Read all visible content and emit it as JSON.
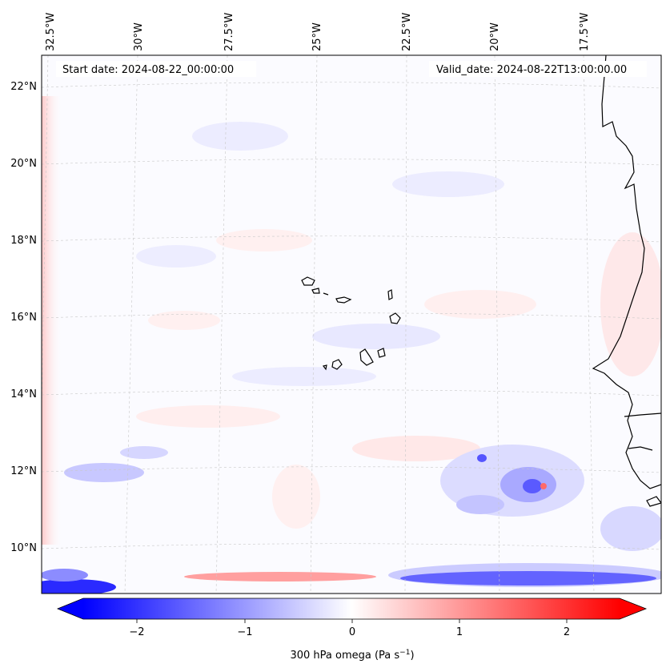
{
  "map": {
    "start_label": "Start date: 2024-08-22_00:00:00",
    "valid_label": "Valid_date: 2024-08-22T13:00:00.00",
    "lon_labels": [
      "32.5°W",
      "30°W",
      "27.5°W",
      "25°W",
      "22.5°W",
      "20°W",
      "17.5°W"
    ],
    "lat_labels": [
      "22°N",
      "20°N",
      "18°N",
      "16°N",
      "14°N",
      "12°N",
      "10°N"
    ],
    "field": "300 hPa omega",
    "colormap": "bwr",
    "coastline_color": "#000000"
  },
  "colorbar": {
    "label_main": "300 hPa omega (Pa s",
    "label_exp": "−1",
    "label_close": ")",
    "ticks": [
      "−2",
      "−1",
      "0",
      "1",
      "2"
    ],
    "tick_values": [
      -2,
      -1,
      0,
      1,
      2
    ],
    "range": [
      -2.6,
      2.6
    ],
    "colors": [
      "#0000ff",
      "#ffffff",
      "#ff0000"
    ]
  }
}
